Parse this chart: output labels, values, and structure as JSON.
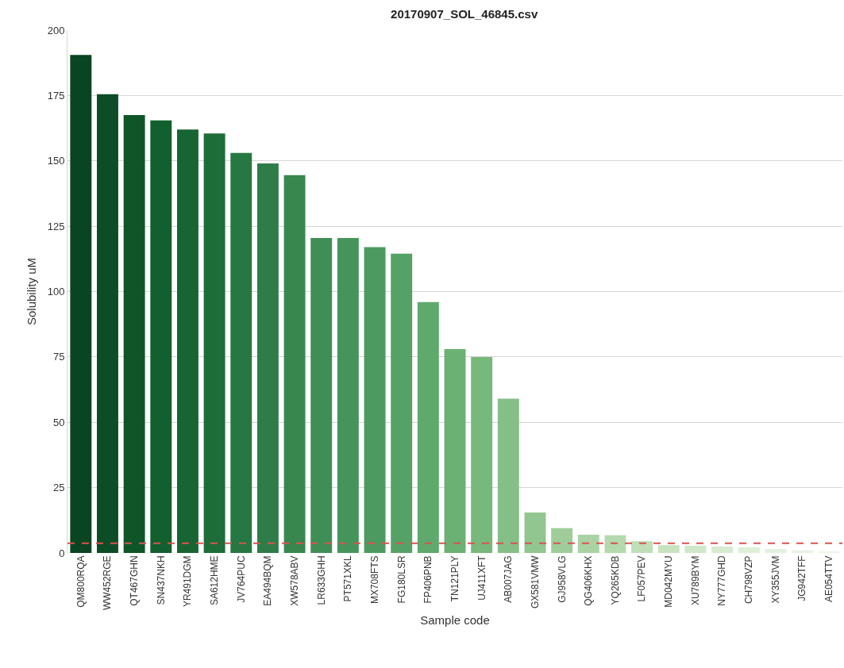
{
  "chart_data": {
    "type": "bar",
    "title": "20170907_SOL_46845.csv",
    "xlabel": "Sample code",
    "ylabel": "Solubility uM",
    "categories": [
      "QM800RQA",
      "WW452RGE",
      "QT467GHN",
      "SN437NKH",
      "YR491DGM",
      "SA612HME",
      "JV764PUC",
      "EA494BQM",
      "XW578ABV",
      "LR633GHH",
      "PT571XKL",
      "MX708FTS",
      "FG180LSR",
      "FP406PNB",
      "TN121PLY",
      "UJ411XFT",
      "AB007JAG",
      "GX581VMW",
      "GJ958VLG",
      "QG406KHX",
      "YQ265KDB",
      "LF057PEV",
      "MD042MYU",
      "XU789BYM",
      "NY777GHD",
      "CH798VZP",
      "XY355JVM",
      "JG942TFF",
      "AE054TTV"
    ],
    "values": [
      190.5,
      175.5,
      167.5,
      165.5,
      162,
      160.5,
      153,
      149,
      144.5,
      120.5,
      120.5,
      117,
      114.5,
      96,
      78,
      75,
      59,
      15.5,
      9.5,
      7,
      6.8,
      4.5,
      3,
      2.8,
      2.5,
      2.2,
      1.5,
      1,
      0.5
    ],
    "colors": [
      "#0a4521",
      "#0c4d25",
      "#0e5628",
      "#11602d",
      "#176532",
      "#1d6d39",
      "#267741",
      "#2e7d48",
      "#37874f",
      "#3f8e56",
      "#45955b",
      "#4c9a60",
      "#55a266",
      "#5fa96d",
      "#6bb174",
      "#77b87c",
      "#85bf87",
      "#92c690",
      "#9ecd9a",
      "#aad3a5",
      "#b5d9ae",
      "#bfdfb7",
      "#c8e3c0",
      "#d0e8c9",
      "#d7ebd1",
      "#ddefd7",
      "#e2f1dd",
      "#e6f3e1",
      "#e9f5e5"
    ],
    "ylim": [
      0,
      200
    ],
    "yticks": [
      0,
      25,
      50,
      75,
      100,
      125,
      150,
      175,
      200
    ],
    "grid": "y",
    "ref_lines": [
      {
        "axis": "y",
        "value": 3.7,
        "color": "#d9534f",
        "line_style": "dashed"
      }
    ]
  }
}
